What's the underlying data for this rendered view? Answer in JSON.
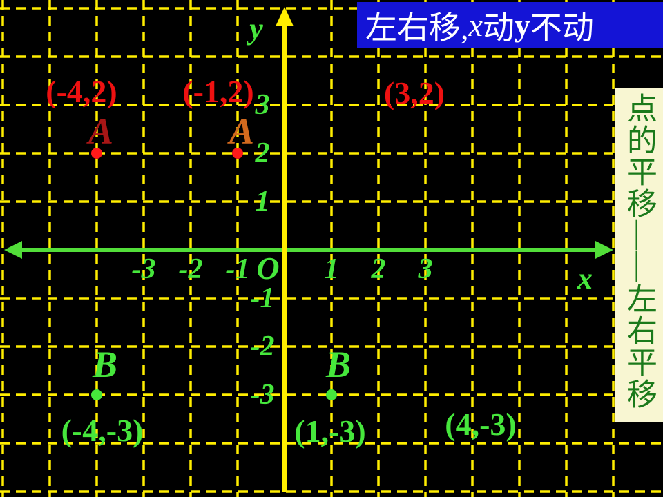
{
  "banner": {
    "bg": "#1414d6",
    "fg": "#ffffff",
    "segments": [
      {
        "text": "左右移, ",
        "style": "normal"
      },
      {
        "text": "x",
        "style": "italic"
      },
      {
        "text": " 动",
        "style": "normal"
      },
      {
        "text": "y",
        "style": "bold"
      },
      {
        "text": "不动",
        "style": "normal"
      }
    ]
  },
  "side_panel": {
    "text": "点的平移——左右平移",
    "bg": "#f8f6d2",
    "fg": "#1b7a1b"
  },
  "chart_data": {
    "type": "scatter",
    "title": "",
    "xlabel": "x",
    "ylabel": "y",
    "origin_label": "O",
    "x_ticks": [
      -3,
      -2,
      -1,
      1,
      2,
      3
    ],
    "y_ticks": [
      3,
      2,
      1,
      -1,
      -2,
      -3
    ],
    "xlim": [
      -6,
      8
    ],
    "ylim": [
      -5,
      5
    ],
    "grid": true,
    "grid_style": "dashed",
    "colors": {
      "grid": "#ffee00",
      "y_axis": "#ffee00",
      "x_axis": "#52de39",
      "ticks": "#46e73c"
    },
    "points": [
      {
        "name": "A",
        "name_color": "#a81616",
        "x": -4,
        "y": 2,
        "dot": true,
        "dot_color": "#ff1a1a",
        "coord_label": "(-4,2)",
        "coord_color": "#ee1111"
      },
      {
        "name": "A",
        "name_color": "#d2691e",
        "x": -1,
        "y": 2,
        "dot": true,
        "dot_color": "#ff1a1a",
        "coord_label": "(-1,2)",
        "coord_color": "#ee1111"
      },
      {
        "name": "",
        "name_color": "",
        "x": 3,
        "y": 2,
        "dot": false,
        "dot_color": "",
        "coord_label": "(3,2)",
        "coord_color": "#ee1111"
      },
      {
        "name": "B",
        "name_color": "#46e73c",
        "x": -4,
        "y": -3,
        "dot": true,
        "dot_color": "#46e73c",
        "coord_label": "(-4,-3)",
        "coord_color": "#46e73c"
      },
      {
        "name": "B",
        "name_color": "#46e73c",
        "x": 1,
        "y": -3,
        "dot": true,
        "dot_color": "#46e73c",
        "coord_label": "(1,-3)",
        "coord_color": "#46e73c"
      },
      {
        "name": "",
        "name_color": "",
        "x": 4,
        "y": -3,
        "dot": false,
        "dot_color": "",
        "coord_label": "(4,-3)",
        "coord_color": "#46e73c"
      }
    ]
  }
}
